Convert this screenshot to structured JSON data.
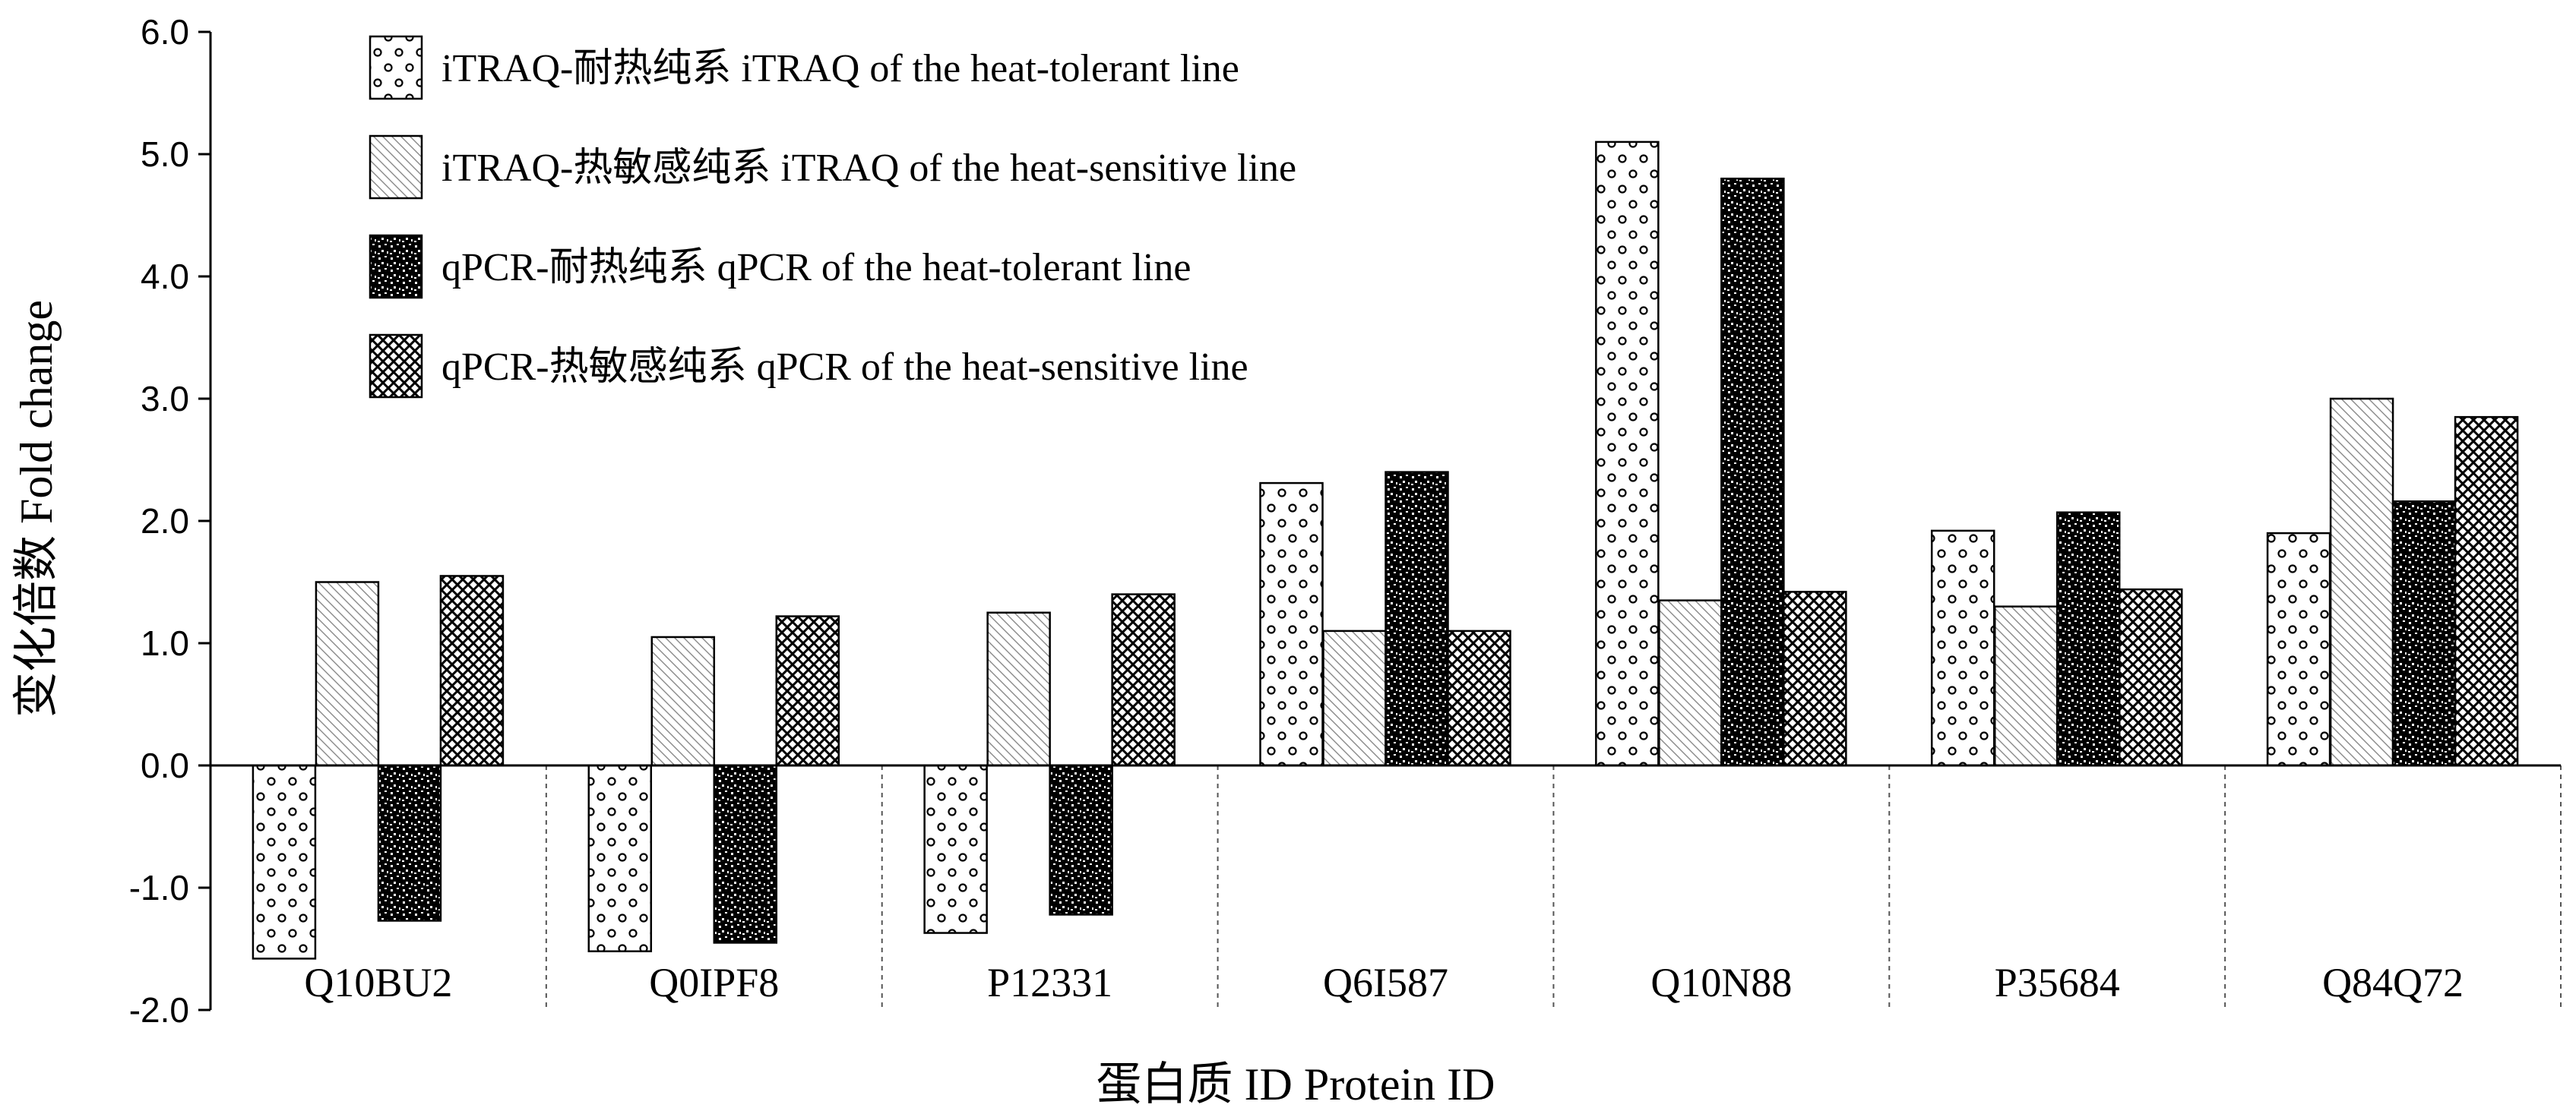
{
  "chart_data": {
    "type": "bar",
    "xlabel": "蛋白质 ID  Protein ID",
    "ylabel": "变化倍数  Fold change",
    "ylim": [
      -2.0,
      6.0
    ],
    "y_ticks": [
      "-2.0",
      "-1.0",
      "0.0",
      "1.0",
      "2.0",
      "3.0",
      "4.0",
      "5.0",
      "6.0"
    ],
    "grid": false,
    "legend_position": "top-left",
    "categories": [
      "Q10BU2",
      "Q0IPF8",
      "P12331",
      "Q6I587",
      "Q10N88",
      "P35684",
      "Q84Q72"
    ],
    "series": [
      {
        "name": "iTRAQ-耐热纯系 iTRAQ of the heat-tolerant line",
        "pattern": "circles",
        "values": [
          -1.58,
          -1.52,
          -1.37,
          2.31,
          5.1,
          1.92,
          1.9
        ]
      },
      {
        "name": "iTRAQ-热敏感纯系 iTRAQ of the heat-sensitive line",
        "pattern": "diagonal",
        "values": [
          1.5,
          1.05,
          1.25,
          1.1,
          1.35,
          1.3,
          3.0
        ]
      },
      {
        "name": "qPCR-耐热纯系 qPCR of the heat-tolerant line",
        "pattern": "dense",
        "values": [
          -1.27,
          -1.45,
          -1.22,
          2.4,
          4.8,
          2.07,
          2.16
        ]
      },
      {
        "name": "qPCR-热敏感纯系 qPCR of the heat-sensitive line",
        "pattern": "crosshatch",
        "values": [
          1.55,
          1.22,
          1.4,
          1.1,
          1.42,
          1.44,
          2.85
        ]
      }
    ]
  }
}
